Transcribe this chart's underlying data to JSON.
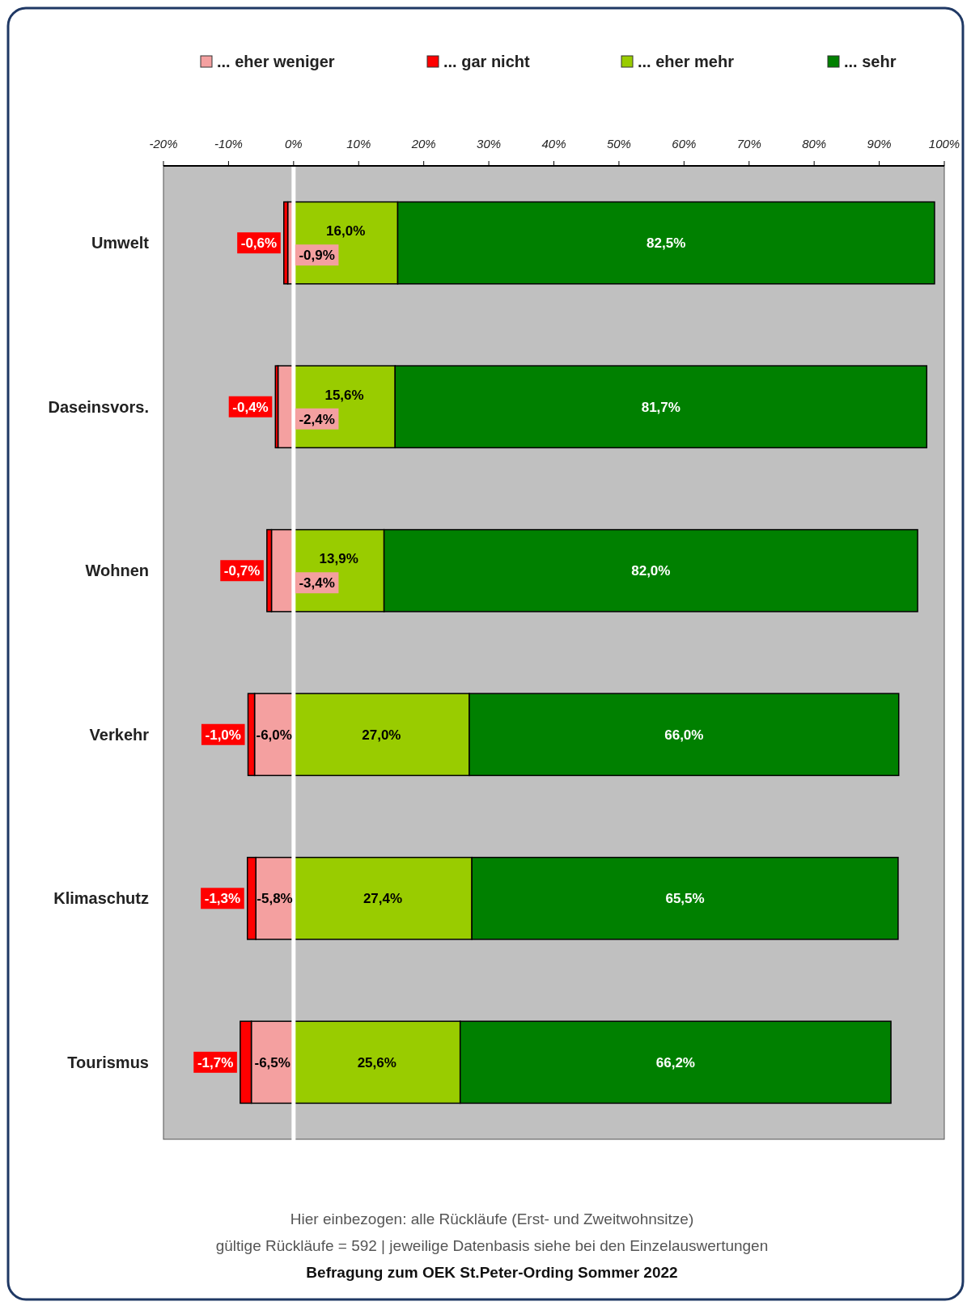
{
  "chart_data": {
    "type": "bar",
    "orientation": "horizontal",
    "stacked": true,
    "categories": [
      "Umwelt",
      "Daseinsvors.",
      "Wohnen",
      "Verkehr",
      "Klimaschutz",
      "Tourismus"
    ],
    "series": [
      {
        "name": "... eher weniger",
        "color": "#f4a0a0",
        "values": [
          -0.9,
          -2.4,
          -3.4,
          -6.0,
          -5.8,
          -6.5
        ],
        "value_labels": [
          "-0,9%",
          "-2,4%",
          "-3,4%",
          "-6,0%",
          "-5,8%",
          "-6,5%"
        ]
      },
      {
        "name": "... gar nicht",
        "color": "#ff0000",
        "values": [
          -0.6,
          -0.4,
          -0.7,
          -1.0,
          -1.3,
          -1.7
        ],
        "value_labels": [
          "-0,6%",
          "-0,4%",
          "-0,7%",
          "-1,0%",
          "-1,3%",
          "-1,7%"
        ]
      },
      {
        "name": "... eher mehr",
        "color": "#99cc00",
        "values": [
          16.0,
          15.6,
          13.9,
          27.0,
          27.4,
          25.6
        ],
        "value_labels": [
          "16,0%",
          "15,6%",
          "13,9%",
          "27,0%",
          "27,4%",
          "25,6%"
        ]
      },
      {
        "name": "... sehr",
        "color": "#008000",
        "values": [
          82.5,
          81.7,
          82.0,
          66.0,
          65.5,
          66.2
        ],
        "value_labels": [
          "82,5%",
          "81,7%",
          "82,0%",
          "66,0%",
          "65,5%",
          "66,2%"
        ]
      }
    ],
    "xlim": [
      -20,
      100
    ],
    "xticks": [
      {
        "value": -20,
        "label": "-20%"
      },
      {
        "value": -10,
        "label": "-10%"
      },
      {
        "value": 0,
        "label": "0%"
      },
      {
        "value": 10,
        "label": "10%"
      },
      {
        "value": 20,
        "label": "20%"
      },
      {
        "value": 30,
        "label": "30%"
      },
      {
        "value": 40,
        "label": "40%"
      },
      {
        "value": 50,
        "label": "50%"
      },
      {
        "value": 60,
        "label": "60%"
      },
      {
        "value": 70,
        "label": "70%"
      },
      {
        "value": 80,
        "label": "80%"
      },
      {
        "value": 90,
        "label": "90%"
      },
      {
        "value": 100,
        "label": "100%"
      }
    ],
    "ref_lines": [
      {
        "axis": "x",
        "value": 0,
        "color": "#ffffff"
      }
    ],
    "legend": "top",
    "annotations": [
      "Hier einbezogen: alle Rückläufe (Erst- und Zweitwohnsitze)",
      "gültige Rückläufe = 592 | jeweilige Datenbasis siehe bei den Einzelauswertungen",
      "Befragung zum OEK St.Peter-Ording Sommer 2022"
    ]
  }
}
